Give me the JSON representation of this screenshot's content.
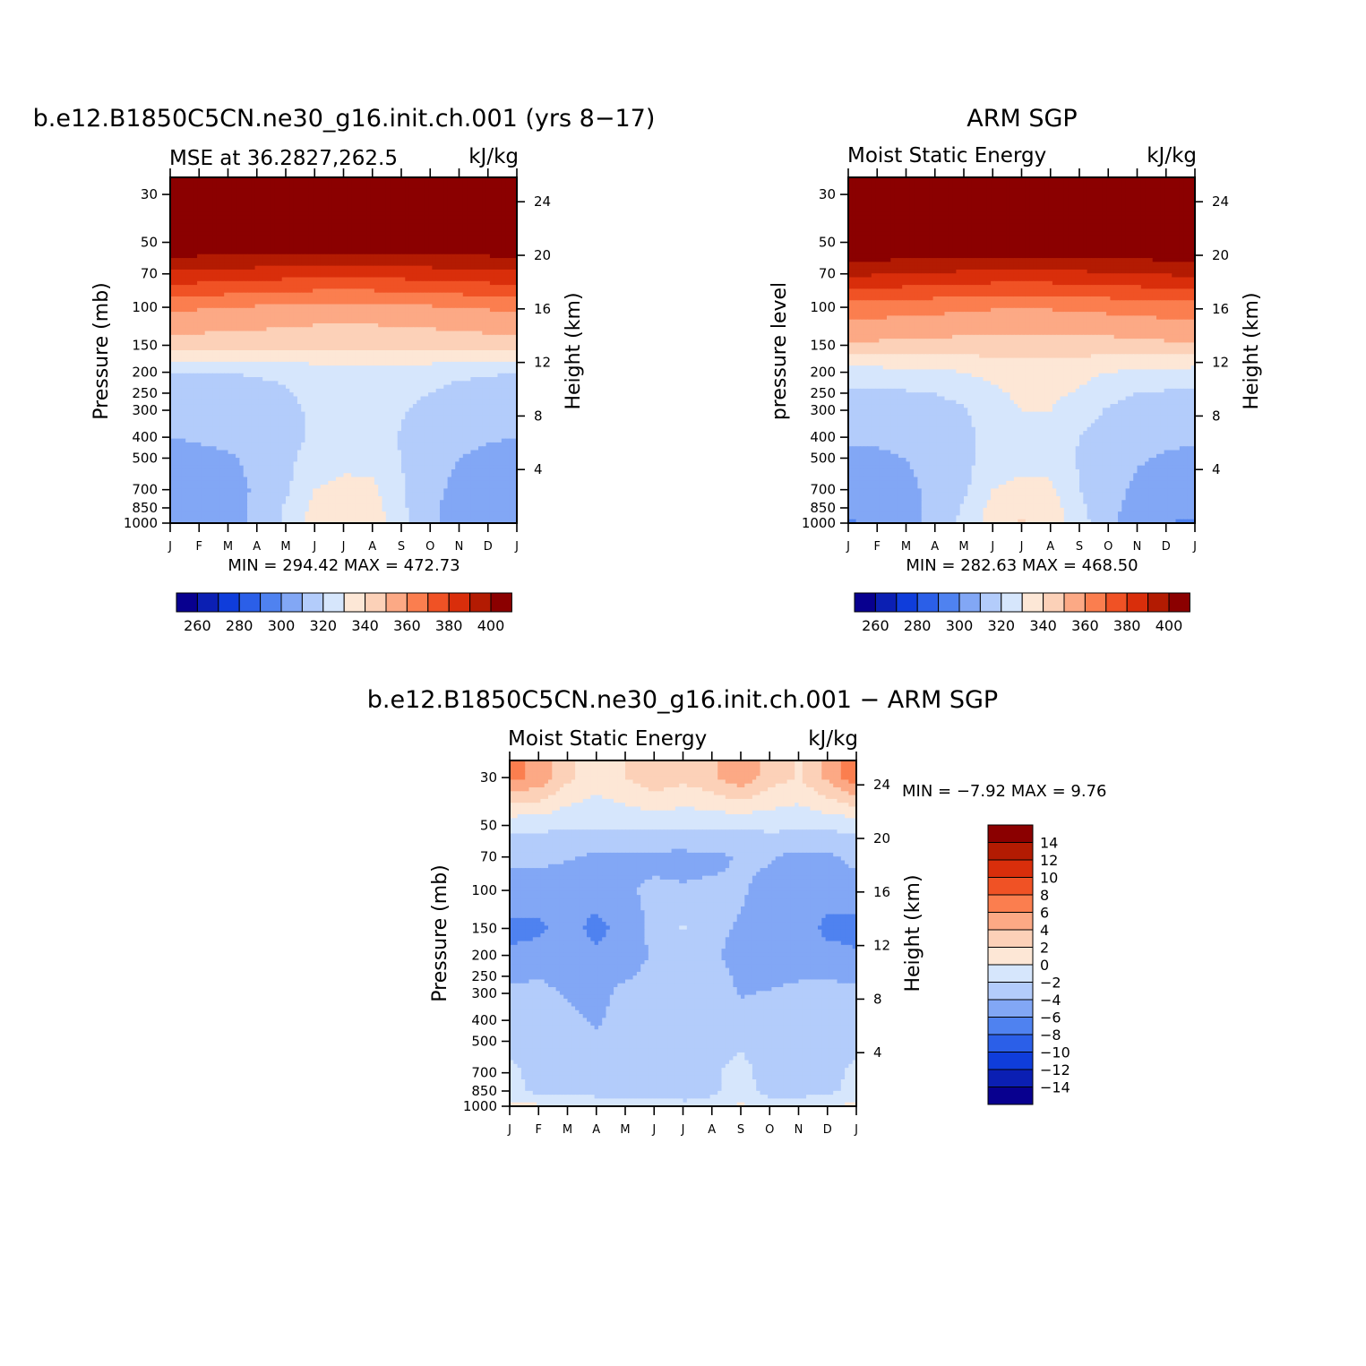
{
  "colors": [
    "#08008f",
    "#0b1fb3",
    "#0f3ddb",
    "#2b5fe8",
    "#4f82f0",
    "#82a7f5",
    "#b3ccfb",
    "#d6e6fc",
    "#fde7d6",
    "#fcd1b8",
    "#fca985",
    "#fb7e4f",
    "#f05225",
    "#d92e0b",
    "#b31b02",
    "#8b0000"
  ],
  "months": [
    "J",
    "F",
    "M",
    "A",
    "M",
    "J",
    "J",
    "A",
    "S",
    "O",
    "N",
    "D",
    "J"
  ],
  "pressure_ticks": [
    "30",
    "50",
    "70",
    "100",
    "150",
    "200",
    "250",
    "300",
    "400",
    "500",
    "700",
    "850",
    "1000"
  ],
  "height_ticks": [
    "24",
    "20",
    "16",
    "12",
    "8",
    "4"
  ],
  "panels": [
    {
      "title": "b.e12.B1850C5CN.ne30_g16.init.ch.001 (yrs 8−17)",
      "subtitle_left": "MSE at 36.2827,262.5",
      "subtitle_right": "kJ/kg",
      "ylabel_left": "Pressure (mb)",
      "ylabel_right": "Height (km)",
      "minmax": "MIN = 294.42 MAX = 472.73"
    },
    {
      "title": "ARM SGP",
      "subtitle_left": "Moist Static Energy",
      "subtitle_right": "kJ/kg",
      "ylabel_left": "pressure level",
      "ylabel_right": "Height (km)",
      "minmax": "MIN = 282.63 MAX = 468.50"
    },
    {
      "title": "b.e12.B1850C5CN.ne30_g16.init.ch.001 − ARM SGP",
      "subtitle_left": "Moist Static Energy",
      "subtitle_right": "kJ/kg",
      "ylabel_left": "Pressure (mb)",
      "ylabel_right": "Height (km)",
      "minmax": "MIN = −7.92 MAX = 9.76"
    }
  ],
  "colorbar_top_labels": [
    "260",
    "280",
    "300",
    "320",
    "340",
    "360",
    "380",
    "400"
  ],
  "colorbar_diff_labels": [
    "14",
    "12",
    "10",
    "8",
    "6",
    "4",
    "2",
    "0",
    "−2",
    "−4",
    "−6",
    "−8",
    "−10",
    "−12",
    "−14"
  ],
  "chart_data": [
    {
      "type": "heatmap",
      "title": "b.e12.B1850C5CN.ne30_g16.init.ch.001 (yrs 8−17)",
      "subtitle": "MSE at 36.2827,262.5",
      "units": "kJ/kg",
      "xlabel": "",
      "ylabel": "Pressure (mb)",
      "ylabel_right": "Height (km)",
      "x": [
        "J",
        "F",
        "M",
        "A",
        "M",
        "J",
        "J",
        "A",
        "S",
        "O",
        "N",
        "D",
        "J"
      ],
      "y_pressure": [
        1000,
        850,
        700,
        500,
        400,
        300,
        250,
        200,
        150,
        100,
        70,
        50,
        30
      ],
      "levels": [
        250,
        260,
        270,
        280,
        290,
        300,
        310,
        320,
        330,
        340,
        350,
        360,
        370,
        380,
        390,
        400
      ],
      "z": [
        [
          301,
          303,
          306,
          312,
          322,
          334,
          337,
          336,
          323,
          312,
          305,
          302,
          301
        ],
        [
          302,
          304,
          307,
          312,
          321,
          333,
          336,
          335,
          322,
          312,
          306,
          303,
          302
        ],
        [
          304,
          305,
          307,
          311,
          318,
          330,
          332,
          332,
          321,
          313,
          307,
          305,
          304
        ],
        [
          307,
          308,
          309,
          312,
          317,
          325,
          328,
          327,
          320,
          314,
          310,
          308,
          307
        ],
        [
          310,
          311,
          312,
          313,
          316,
          322,
          326,
          326,
          319,
          315,
          312,
          311,
          310
        ],
        [
          313,
          313,
          313,
          314,
          317,
          322,
          325,
          325,
          321,
          317,
          314,
          313,
          313
        ],
        [
          316,
          316,
          316,
          317,
          319,
          323,
          326,
          326,
          323,
          320,
          317,
          316,
          316
        ],
        [
          320,
          320,
          320,
          321,
          322,
          325,
          327,
          327,
          326,
          324,
          322,
          321,
          320
        ],
        [
          345,
          345,
          344,
          344,
          343,
          342,
          342,
          342,
          342,
          343,
          344,
          345,
          345
        ],
        [
          362,
          361,
          360,
          359,
          358,
          357,
          357,
          357,
          358,
          359,
          360,
          361,
          362
        ],
        [
          388,
          387,
          386,
          385,
          384,
          383,
          383,
          383,
          384,
          385,
          386,
          387,
          388
        ],
        [
          410,
          410,
          410,
          410,
          410,
          410,
          410,
          410,
          410,
          410,
          410,
          410,
          410
        ],
        [
          440,
          440,
          440,
          440,
          440,
          440,
          440,
          440,
          440,
          440,
          440,
          440,
          440
        ]
      ],
      "min": 294.42,
      "max": 472.73
    },
    {
      "type": "heatmap",
      "title": "ARM SGP",
      "subtitle": "Moist Static Energy",
      "units": "kJ/kg",
      "xlabel": "",
      "ylabel": "pressure level",
      "ylabel_right": "Height (km)",
      "x": [
        "J",
        "F",
        "M",
        "A",
        "M",
        "J",
        "J",
        "A",
        "S",
        "O",
        "N",
        "D",
        "J"
      ],
      "y_pressure": [
        1000,
        850,
        700,
        500,
        400,
        300,
        250,
        200,
        150,
        100,
        70,
        50,
        30
      ],
      "levels": [
        250,
        260,
        270,
        280,
        290,
        300,
        310,
        320,
        330,
        340,
        350,
        360,
        370,
        380,
        390,
        400
      ],
      "z": [
        [
          299,
          302,
          306,
          313,
          323,
          335,
          341,
          337,
          324,
          313,
          304,
          300,
          299
        ],
        [
          302,
          304,
          307,
          313,
          321,
          333,
          337,
          335,
          322,
          313,
          306,
          303,
          302
        ],
        [
          305,
          306,
          308,
          312,
          318,
          330,
          333,
          332,
          320,
          314,
          308,
          306,
          305
        ],
        [
          308,
          309,
          310,
          313,
          317,
          324,
          326,
          326,
          319,
          315,
          311,
          309,
          308
        ],
        [
          311,
          311,
          312,
          314,
          317,
          324,
          328,
          328,
          320,
          316,
          313,
          312,
          311
        ],
        [
          315,
          315,
          315,
          316,
          319,
          326,
          330,
          330,
          325,
          319,
          316,
          315,
          315
        ],
        [
          319,
          319,
          319,
          320,
          323,
          328,
          332,
          332,
          329,
          323,
          320,
          319,
          319
        ],
        [
          326,
          326,
          327,
          328,
          330,
          333,
          335,
          335,
          333,
          330,
          328,
          327,
          326
        ],
        [
          348,
          348,
          347,
          347,
          346,
          345,
          345,
          345,
          345,
          346,
          347,
          348,
          348
        ],
        [
          366,
          365,
          364,
          363,
          362,
          361,
          361,
          361,
          362,
          363,
          364,
          365,
          366
        ],
        [
          392,
          391,
          390,
          389,
          388,
          387,
          387,
          387,
          388,
          389,
          390,
          391,
          392
        ],
        [
          412,
          412,
          412,
          412,
          412,
          412,
          412,
          412,
          412,
          412,
          412,
          412,
          412
        ],
        [
          440,
          440,
          440,
          440,
          440,
          440,
          440,
          440,
          440,
          440,
          440,
          440,
          440
        ]
      ],
      "min": 282.63,
      "max": 468.5
    },
    {
      "type": "heatmap",
      "title": "b.e12.B1850C5CN.ne30_g16.init.ch.001 − ARM SGP",
      "subtitle": "Moist Static Energy",
      "units": "kJ/kg",
      "xlabel": "",
      "ylabel": "Pressure (mb)",
      "ylabel_right": "Height (km)",
      "x": [
        "J",
        "F",
        "M",
        "A",
        "M",
        "J",
        "J",
        "A",
        "S",
        "O",
        "N",
        "D",
        "J"
      ],
      "y_pressure": [
        1000,
        850,
        700,
        500,
        400,
        300,
        250,
        200,
        150,
        100,
        70,
        50,
        30
      ],
      "levels": [
        -16,
        -14,
        -12,
        -10,
        -8,
        -6,
        -4,
        -2,
        0,
        2,
        4,
        6,
        8,
        10,
        12,
        14
      ],
      "z": [
        [
          0.8,
          0.3,
          -0.5,
          -1.2,
          -1.5,
          -1.0,
          -1.3,
          -1.5,
          0.6,
          -1.2,
          -1.5,
          -0.4,
          0.8
        ],
        [
          -1.5,
          -2.5,
          -2.5,
          -2.5,
          -2.8,
          -2.6,
          -3.2,
          -2.2,
          -1.5,
          -2.5,
          -2.5,
          -2.5,
          -1.5
        ],
        [
          -1.6,
          -2.5,
          -3.0,
          -3.0,
          -2.8,
          -2.6,
          -2.8,
          -2.2,
          -1.5,
          -2.6,
          -2.8,
          -2.5,
          -1.6
        ],
        [
          -2.5,
          -2.8,
          -3.5,
          -3.8,
          -3.0,
          -2.8,
          -2.6,
          -2.8,
          -2.2,
          -3.0,
          -3.2,
          -2.6,
          -2.5
        ],
        [
          -3.2,
          -3.2,
          -3.6,
          -4.2,
          -3.3,
          -3.0,
          -2.8,
          -2.8,
          -2.8,
          -3.5,
          -3.5,
          -3.0,
          -3.2
        ],
        [
          -3.5,
          -3.2,
          -4.2,
          -4.6,
          -3.5,
          -3.0,
          -2.8,
          -3.0,
          -4.2,
          -3.8,
          -3.5,
          -3.2,
          -3.5
        ],
        [
          -4.5,
          -4.2,
          -4.8,
          -4.6,
          -4.2,
          -3.5,
          -3.0,
          -3.5,
          -4.2,
          -4.6,
          -4.2,
          -4.2,
          -4.5
        ],
        [
          -5.8,
          -5.2,
          -4.5,
          -5.5,
          -4.8,
          -3.8,
          -3.2,
          -3.6,
          -4.8,
          -4.8,
          -4.6,
          -5.2,
          -5.8
        ],
        [
          -6.5,
          -6.4,
          -5.0,
          -6.8,
          -5.0,
          -3.5,
          -1.8,
          -3.5,
          -4.2,
          -4.6,
          -4.8,
          -6.6,
          -6.6
        ],
        [
          -4.8,
          -4.8,
          -5.2,
          -4.8,
          -4.3,
          -3.6,
          -3.8,
          -3.6,
          -3.8,
          -4.6,
          -4.6,
          -4.8,
          -4.8
        ],
        [
          -3.5,
          -3.6,
          -3.8,
          -4.4,
          -4.5,
          -4.6,
          -4.6,
          -4.5,
          -3.8,
          -3.8,
          -4.6,
          -4.4,
          -3.5
        ],
        [
          -1.5,
          -1.5,
          -1.8,
          -1.6,
          -1.6,
          -1.5,
          -1.6,
          -1.6,
          -1.8,
          -1.5,
          -1.5,
          -1.5,
          -1.5
        ],
        [
          6.5,
          5.5,
          2.5,
          0.8,
          2.0,
          3.5,
          2.6,
          3.5,
          5.5,
          3.0,
          1.8,
          4.5,
          7.5
        ]
      ],
      "min": -7.92,
      "max": 9.76
    }
  ]
}
